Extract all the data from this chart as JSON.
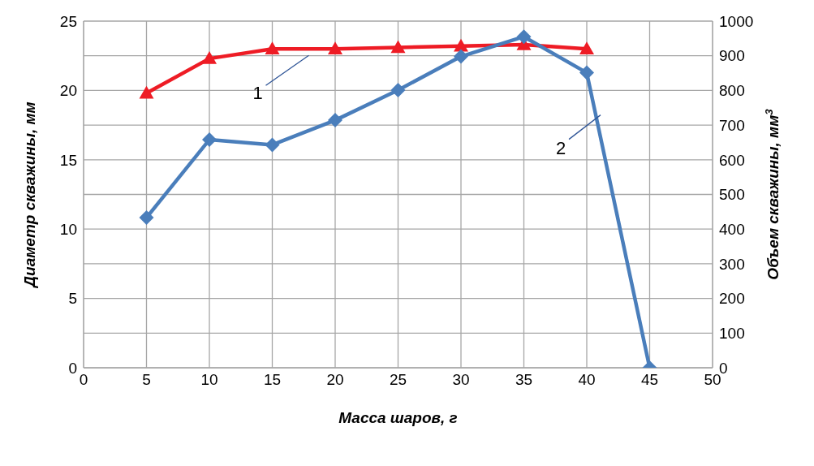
{
  "chart_data": {
    "type": "line",
    "xlabel": "Масса шаров, г",
    "ylabel": "Диаметр скважины, мм",
    "y2label": "Объем скважины, мм$^{3}$",
    "x": [
      5,
      10,
      15,
      20,
      25,
      30,
      35,
      40,
      45
    ],
    "series": [
      {
        "name": "1",
        "color": "#ee1c25",
        "marker": "triangle",
        "values": [
          19.8,
          22.3,
          23.0,
          23.0,
          23.1,
          23.2,
          23.3,
          23.0,
          null
        ]
      },
      {
        "name": "2",
        "color": "#4a7ebb",
        "marker": "diamond",
        "axis": "y2",
        "values": [
          433,
          658,
          643,
          714,
          801,
          898,
          955,
          851,
          0
        ]
      }
    ],
    "xlim": [
      0,
      50
    ],
    "xticks": [
      0,
      5,
      10,
      15,
      20,
      25,
      30,
      35,
      40,
      45,
      50
    ],
    "ylim": [
      0,
      25
    ],
    "yticks": [
      0,
      5,
      10,
      15,
      20,
      25
    ],
    "y2lim": [
      0,
      1000
    ],
    "y2ticks": [
      0,
      100,
      200,
      300,
      400,
      500,
      600,
      700,
      800,
      900,
      1000
    ],
    "grid": true,
    "line_style": "solid"
  }
}
